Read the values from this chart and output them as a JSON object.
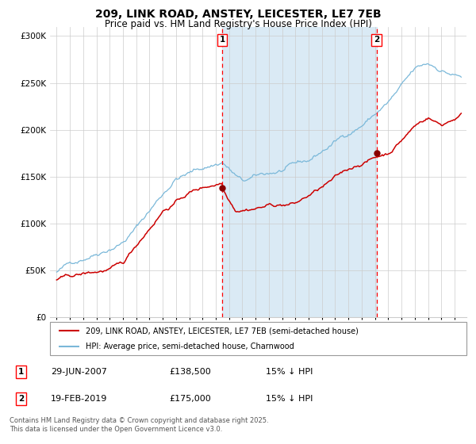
{
  "title": "209, LINK ROAD, ANSTEY, LEICESTER, LE7 7EB",
  "subtitle": "Price paid vs. HM Land Registry's House Price Index (HPI)",
  "legend_line1": "209, LINK ROAD, ANSTEY, LEICESTER, LE7 7EB (semi-detached house)",
  "legend_line2": "HPI: Average price, semi-detached house, Charnwood",
  "footnote": "Contains HM Land Registry data © Crown copyright and database right 2025.\nThis data is licensed under the Open Government Licence v3.0.",
  "hpi_color": "#7ab8d9",
  "price_color": "#cc0000",
  "background_color": "#ffffff",
  "chart_bg_color": "#ffffff",
  "shaded_region_color": "#daeaf5",
  "marker1_x": 2007.49,
  "marker2_x": 2019.12,
  "marker1_price": 138500,
  "marker2_price": 175000,
  "ylim": [
    0,
    310000
  ],
  "yticks": [
    0,
    50000,
    100000,
    150000,
    200000,
    250000,
    300000
  ],
  "ytick_labels": [
    "£0",
    "£50K",
    "£100K",
    "£150K",
    "£200K",
    "£250K",
    "£300K"
  ],
  "grid_color": "#cccccc",
  "ann1_date": "29-JUN-2007",
  "ann1_price": "£138,500",
  "ann1_hpi": "15% ↓ HPI",
  "ann2_date": "19-FEB-2019",
  "ann2_price": "£175,000",
  "ann2_hpi": "15% ↓ HPI"
}
